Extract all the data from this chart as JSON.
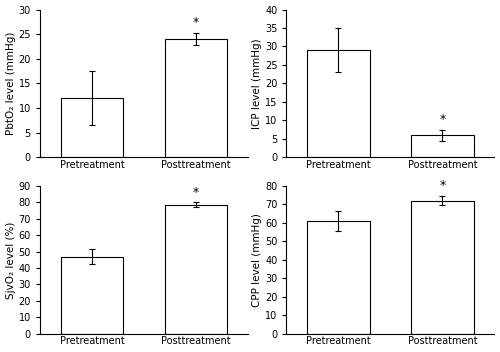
{
  "subplots": [
    {
      "ylabel": "PbtO₂ level (mmHg)",
      "ylim": [
        0,
        30
      ],
      "yticks": [
        0,
        5,
        10,
        15,
        20,
        25,
        30
      ],
      "bars": [
        {
          "label": "Pretreatment",
          "value": 12.0,
          "error": 5.5,
          "sig": false
        },
        {
          "label": "Posttreatment",
          "value": 24.0,
          "error": 1.2,
          "sig": true
        }
      ]
    },
    {
      "ylabel": "ICP level (mmHg)",
      "ylim": [
        0,
        40
      ],
      "yticks": [
        0,
        5,
        10,
        15,
        20,
        25,
        30,
        35,
        40
      ],
      "bars": [
        {
          "label": "Pretreatment",
          "value": 29.0,
          "error": 6.0,
          "sig": false
        },
        {
          "label": "Posttreatment",
          "value": 6.0,
          "error": 1.5,
          "sig": true
        }
      ]
    },
    {
      "ylabel": "SjvO₂ level (%)",
      "ylim": [
        0,
        90
      ],
      "yticks": [
        0,
        10,
        20,
        30,
        40,
        50,
        60,
        70,
        80,
        90
      ],
      "bars": [
        {
          "label": "Pretreatment",
          "value": 47.0,
          "error": 4.5,
          "sig": false
        },
        {
          "label": "Posttreatment",
          "value": 78.5,
          "error": 1.5,
          "sig": true
        }
      ]
    },
    {
      "ylabel": "CPP level (mmHg)",
      "ylim": [
        0,
        80
      ],
      "yticks": [
        0,
        10,
        20,
        30,
        40,
        50,
        60,
        70,
        80
      ],
      "bars": [
        {
          "label": "Pretreatment",
          "value": 61.0,
          "error": 5.5,
          "sig": false
        },
        {
          "label": "Posttreatment",
          "value": 72.0,
          "error": 2.5,
          "sig": true
        }
      ]
    }
  ],
  "bar_color": "#ffffff",
  "bar_edgecolor": "#000000",
  "bar_width": 0.6,
  "errorbar_color": "#000000",
  "sig_marker": "*",
  "sig_fontsize": 9,
  "tick_fontsize": 7,
  "label_fontsize": 7,
  "ylabel_fontsize": 7.5
}
